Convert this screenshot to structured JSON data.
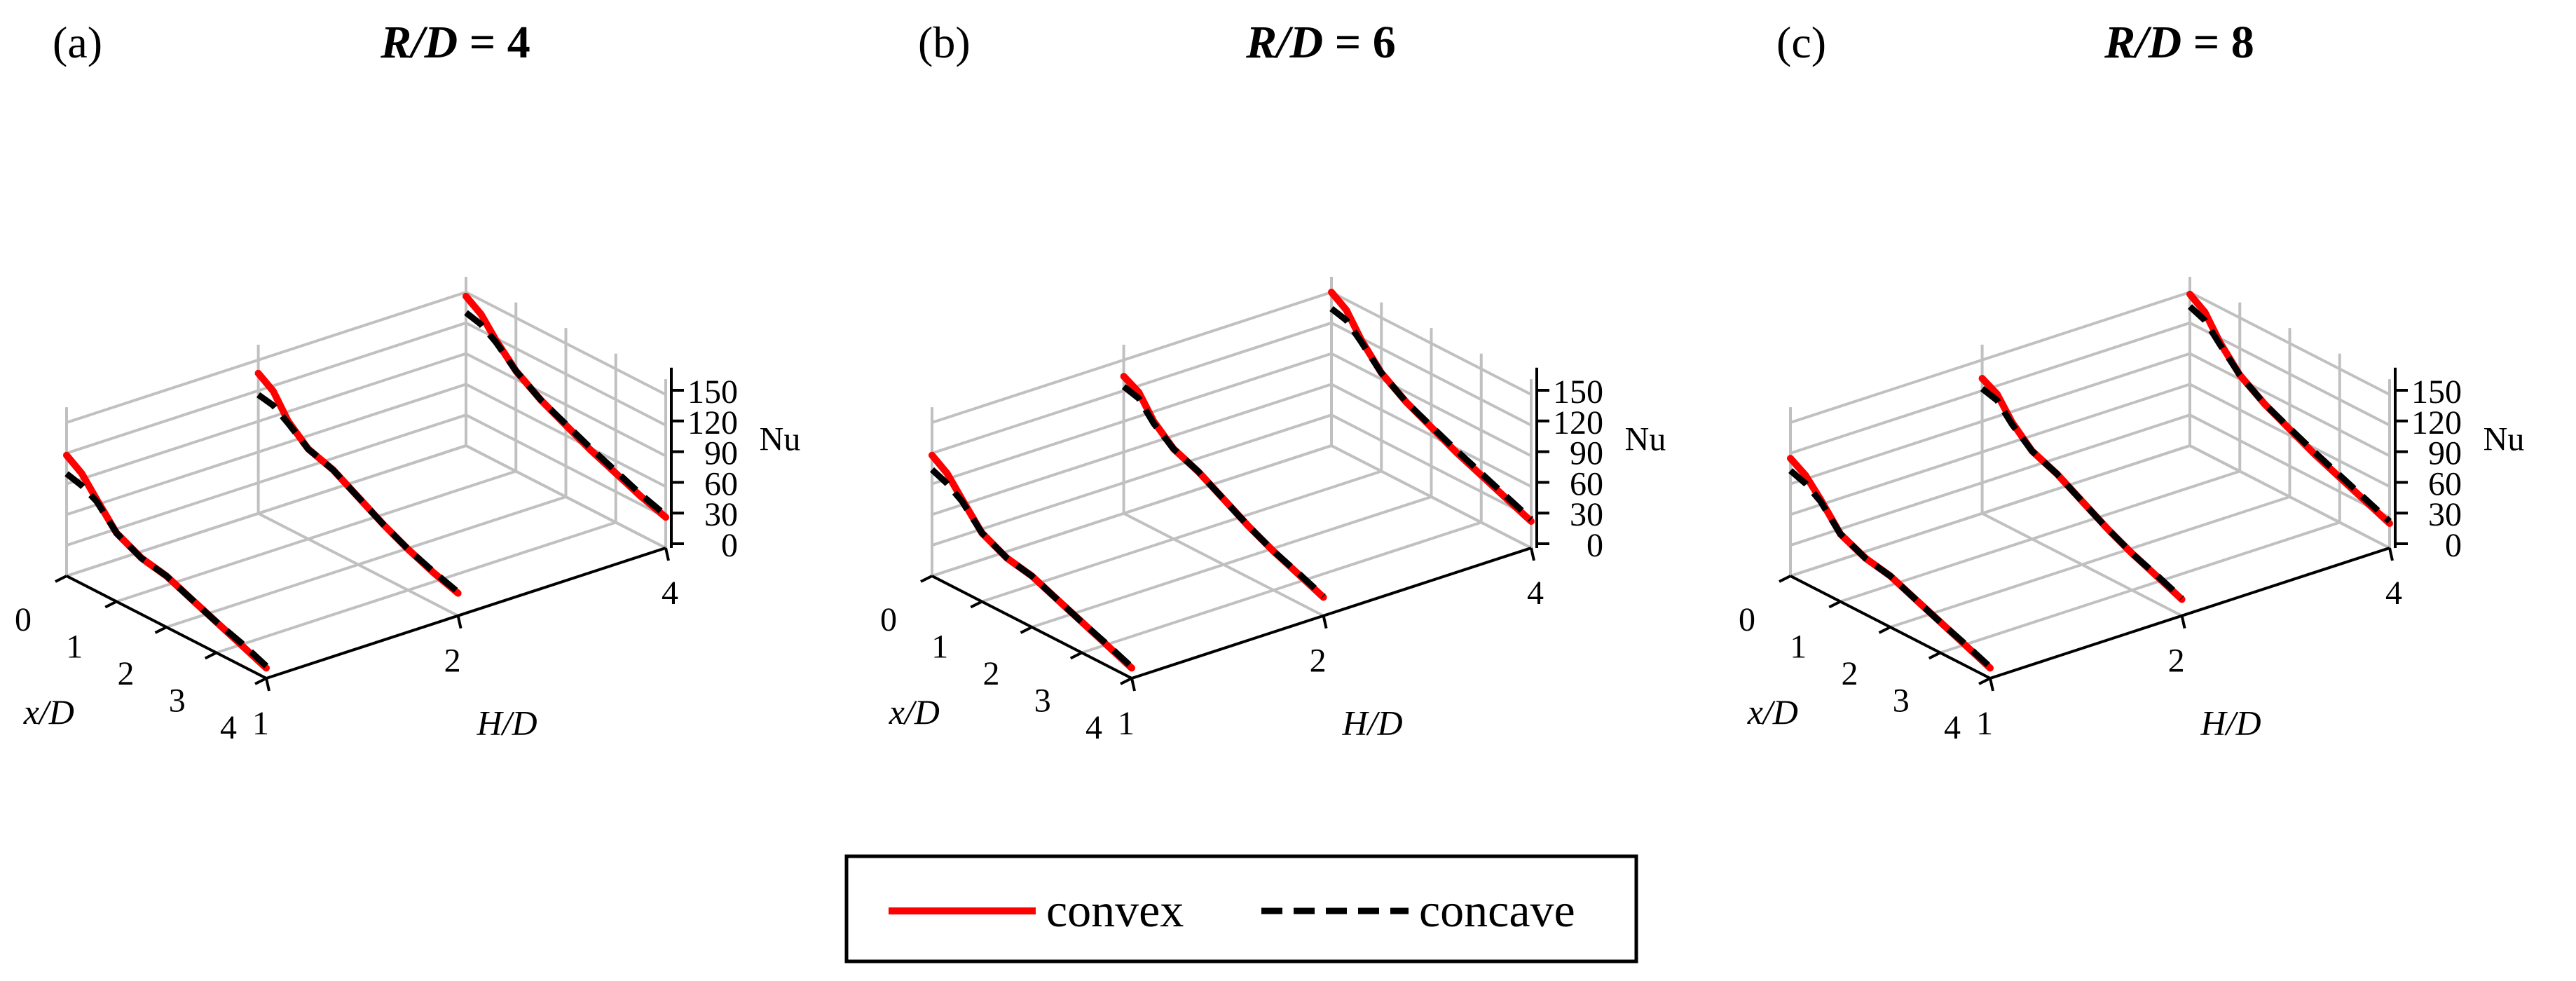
{
  "chart_data": [
    {
      "type": "line",
      "panel_label": "(a)",
      "title": {
        "italic": "R/D",
        "rest": " = 4"
      },
      "xlabel": "x/D",
      "ylabel": "H/D",
      "zlabel": "Nu",
      "x_ticks": [
        "0",
        "1",
        "2",
        "3",
        "4"
      ],
      "y_ticks": [
        "1",
        "2",
        "4"
      ],
      "z_ticks": [
        "0",
        "30",
        "60",
        "90",
        "120",
        "150"
      ],
      "xlim": [
        0,
        4
      ],
      "zlim": [
        0,
        150
      ],
      "series": [
        {
          "name": "convex",
          "HD": 1,
          "x": [
            0,
            0.3,
            0.6,
            1,
            1.5,
            2,
            2.5,
            3,
            3.5,
            4
          ],
          "nu": [
            118,
            108,
            90,
            67,
            55,
            50,
            40,
            30,
            20,
            10
          ]
        },
        {
          "name": "concave",
          "HD": 1,
          "x": [
            0,
            0.3,
            0.6,
            1,
            1.5,
            2,
            2.5,
            3,
            3.5,
            4
          ],
          "nu": [
            100,
            96,
            88,
            67,
            55,
            50,
            40,
            30,
            22,
            12
          ]
        },
        {
          "name": "convex",
          "HD": 2,
          "x": [
            0,
            0.3,
            0.6,
            1,
            1.5,
            2,
            2.5,
            3,
            3.5,
            4
          ],
          "nu": [
            137,
            127,
            105,
            88,
            80,
            66,
            52,
            40,
            30,
            22
          ]
        },
        {
          "name": "concave",
          "HD": 2,
          "x": [
            0,
            0.3,
            0.6,
            1,
            1.5,
            2,
            2.5,
            3,
            3.5,
            4
          ],
          "nu": [
            116,
            113,
            103,
            88,
            80,
            66,
            52,
            40,
            31,
            23
          ]
        },
        {
          "name": "convex",
          "HD": 4,
          "x": [
            0,
            0.3,
            0.6,
            1,
            1.5,
            2,
            2.5,
            3,
            3.5,
            4
          ],
          "nu": [
            146,
            136,
            118,
            98,
            82,
            70,
            58,
            48,
            38,
            30
          ]
        },
        {
          "name": "concave",
          "HD": 4,
          "x": [
            0,
            0.3,
            0.6,
            1,
            1.5,
            2,
            2.5,
            3,
            3.5,
            4
          ],
          "nu": [
            130,
            126,
            116,
            98,
            82,
            71,
            60,
            50,
            40,
            32
          ]
        }
      ]
    },
    {
      "type": "line",
      "panel_label": "(b)",
      "title": {
        "italic": "R/D",
        "rest": " = 6"
      },
      "xlabel": "x/D",
      "ylabel": "H/D",
      "zlabel": "Nu",
      "x_ticks": [
        "0",
        "1",
        "2",
        "3",
        "4"
      ],
      "y_ticks": [
        "1",
        "2",
        "4"
      ],
      "z_ticks": [
        "0",
        "30",
        "60",
        "90",
        "120",
        "150"
      ],
      "xlim": [
        0,
        4
      ],
      "zlim": [
        0,
        150
      ],
      "series": [
        {
          "name": "convex",
          "HD": 1,
          "x": [
            0,
            0.3,
            0.6,
            1,
            1.5,
            2,
            2.5,
            3,
            3.5,
            4
          ],
          "nu": [
            118,
            108,
            90,
            67,
            55,
            50,
            40,
            30,
            20,
            10
          ]
        },
        {
          "name": "concave",
          "HD": 1,
          "x": [
            0,
            0.3,
            0.6,
            1,
            1.5,
            2,
            2.5,
            3,
            3.5,
            4
          ],
          "nu": [
            104,
            98,
            88,
            67,
            55,
            50,
            40,
            30,
            21,
            11
          ]
        },
        {
          "name": "convex",
          "HD": 2,
          "x": [
            0,
            0.3,
            0.6,
            1,
            1.5,
            2,
            2.5,
            3,
            3.5,
            4
          ],
          "nu": [
            134,
            126,
            105,
            88,
            78,
            64,
            50,
            38,
            28,
            18
          ]
        },
        {
          "name": "concave",
          "HD": 2,
          "x": [
            0,
            0.3,
            0.6,
            1,
            1.5,
            2,
            2.5,
            3,
            3.5,
            4
          ],
          "nu": [
            124,
            120,
            103,
            88,
            78,
            64,
            50,
            38,
            29,
            19
          ]
        },
        {
          "name": "convex",
          "HD": 4,
          "x": [
            0,
            0.3,
            0.6,
            1,
            1.5,
            2,
            2.5,
            3,
            3.5,
            4
          ],
          "nu": [
            150,
            140,
            118,
            96,
            80,
            68,
            56,
            46,
            36,
            26
          ]
        },
        {
          "name": "concave",
          "HD": 4,
          "x": [
            0,
            0.3,
            0.6,
            1,
            1.5,
            2,
            2.5,
            3,
            3.5,
            4
          ],
          "nu": [
            134,
            130,
            116,
            96,
            80,
            69,
            58,
            48,
            38,
            28
          ]
        }
      ]
    },
    {
      "type": "line",
      "panel_label": "(c)",
      "title": {
        "italic": "R/D",
        "rest": " = 8"
      },
      "xlabel": "x/D",
      "ylabel": "H/D",
      "zlabel": "Nu",
      "x_ticks": [
        "0",
        "1",
        "2",
        "3",
        "4"
      ],
      "y_ticks": [
        "1",
        "2",
        "4"
      ],
      "z_ticks": [
        "0",
        "30",
        "60",
        "90",
        "120",
        "150"
      ],
      "xlim": [
        0,
        4
      ],
      "zlim": [
        0,
        150
      ],
      "series": [
        {
          "name": "convex",
          "HD": 1,
          "x": [
            0,
            0.3,
            0.6,
            1,
            1.5,
            2,
            2.5,
            3,
            3.5,
            4
          ],
          "nu": [
            115,
            106,
            90,
            66,
            55,
            50,
            40,
            30,
            20,
            10
          ]
        },
        {
          "name": "concave",
          "HD": 1,
          "x": [
            0,
            0.3,
            0.6,
            1,
            1.5,
            2,
            2.5,
            3,
            3.5,
            4
          ],
          "nu": [
            103,
            98,
            88,
            66,
            55,
            50,
            40,
            30,
            21,
            11
          ]
        },
        {
          "name": "convex",
          "HD": 2,
          "x": [
            0,
            0.3,
            0.6,
            1,
            1.5,
            2,
            2.5,
            3,
            3.5,
            4
          ],
          "nu": [
            132,
            124,
            104,
            86,
            76,
            62,
            48,
            36,
            26,
            16
          ]
        },
        {
          "name": "concave",
          "HD": 2,
          "x": [
            0,
            0.3,
            0.6,
            1,
            1.5,
            2,
            2.5,
            3,
            3.5,
            4
          ],
          "nu": [
            122,
            118,
            102,
            86,
            76,
            62,
            48,
            36,
            27,
            17
          ]
        },
        {
          "name": "convex",
          "HD": 4,
          "x": [
            0,
            0.3,
            0.6,
            1,
            1.5,
            2,
            2.5,
            3,
            3.5,
            4
          ],
          "nu": [
            148,
            138,
            116,
            94,
            78,
            66,
            54,
            44,
            34,
            24
          ]
        },
        {
          "name": "concave",
          "HD": 4,
          "x": [
            0,
            0.3,
            0.6,
            1,
            1.5,
            2,
            2.5,
            3,
            3.5,
            4
          ],
          "nu": [
            136,
            130,
            114,
            94,
            78,
            67,
            56,
            46,
            36,
            26
          ]
        }
      ]
    }
  ],
  "legend": {
    "entries": [
      {
        "name": "convex",
        "label": "convex",
        "color": "#ff0000",
        "style": "solid"
      },
      {
        "name": "concave",
        "label": "concave",
        "color": "#000000",
        "style": "dashed"
      }
    ]
  }
}
